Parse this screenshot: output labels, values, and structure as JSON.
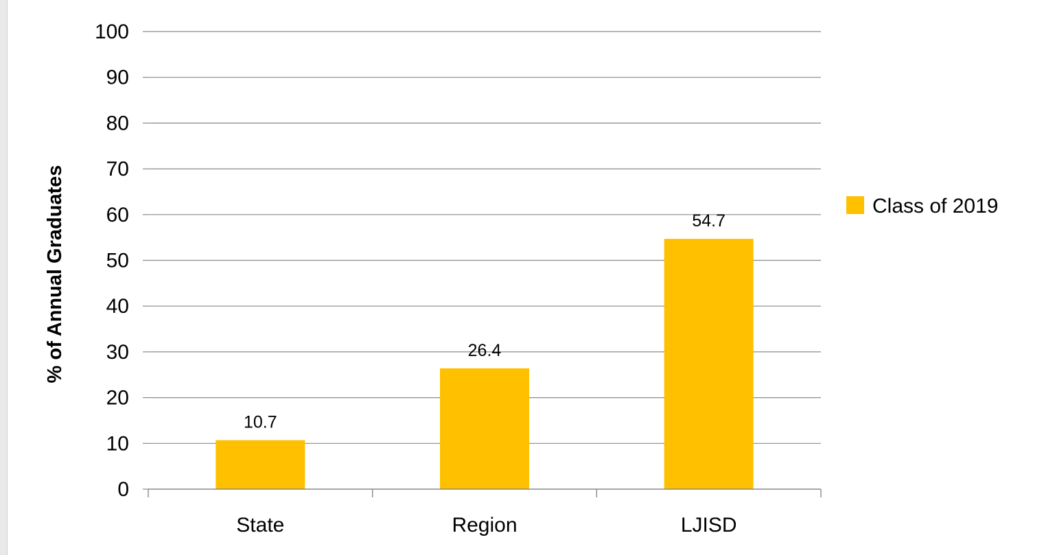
{
  "chart_data": {
    "type": "bar",
    "categories": [
      "State",
      "Region",
      "LJISD"
    ],
    "series": [
      {
        "name": "Class of 2019",
        "values": [
          10.7,
          26.4,
          54.7
        ],
        "color": "#FFC000"
      }
    ],
    "data_labels": [
      "10.7",
      "26.4",
      "54.7"
    ],
    "ylabel": "% of Annual Graduates",
    "xlabel": "",
    "title": "",
    "ylim": [
      0,
      100
    ],
    "yticks": [
      "0",
      "10",
      "20",
      "30",
      "40",
      "50",
      "60",
      "70",
      "80",
      "90",
      "100"
    ],
    "grid": true,
    "legend": "right"
  }
}
